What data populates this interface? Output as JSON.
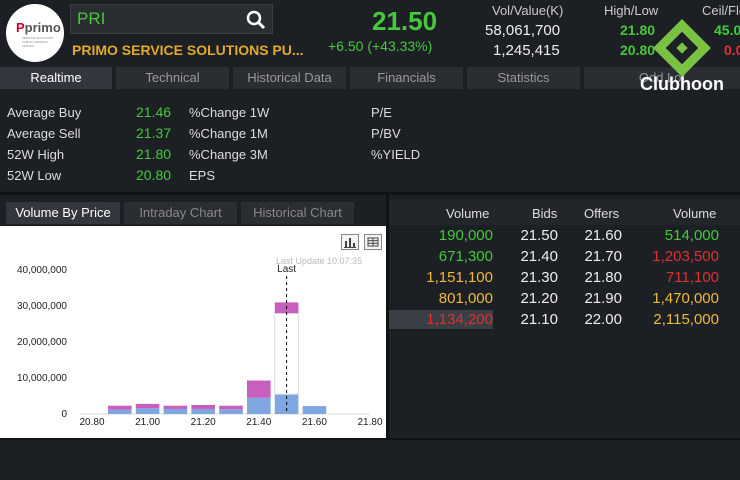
{
  "header": {
    "logo_text": "primo",
    "logo_sub": "SERVICE SOLUTIONS PUBLIC COMPANY LIMITED",
    "search_value": "PRI",
    "company_name": "PRIMO SERVICE SOLUTIONS PU...",
    "price": "21.50",
    "change": "+6.50 (+43.33%)",
    "vol_label": "Vol/Value(K)",
    "volume": "58,061,700",
    "value": "1,245,415",
    "hl_label": "High/Low",
    "high": "21.80",
    "low": "20.80",
    "cf_label": "Ceil/Flo",
    "ceil": "45.0",
    "floor": "0.0"
  },
  "tabs": [
    "Realtime",
    "Technical",
    "Historical Data",
    "Financials",
    "Statistics",
    "Odd Lot"
  ],
  "stats": {
    "left": [
      {
        "label": "Average Buy",
        "value": "21.46"
      },
      {
        "label": "Average Sell",
        "value": "21.37"
      },
      {
        "label": "52W High",
        "value": "21.80"
      },
      {
        "label": "52W Low",
        "value": "20.80"
      }
    ],
    "mid": [
      "%Change 1W",
      "%Change 1M",
      "%Change 3M",
      "EPS"
    ],
    "right": [
      "P/E",
      "P/BV",
      "%YIELD"
    ]
  },
  "subtabs": [
    "Volume By Price",
    "Intraday Chart",
    "Historical Chart"
  ],
  "chart": {
    "last_update": "Last Update 10:07:35",
    "last_label": "Last"
  },
  "chart_data": {
    "type": "bar",
    "categories": [
      "20.80",
      "20.90",
      "21.00",
      "21.10",
      "21.20",
      "21.30",
      "21.40",
      "21.50",
      "21.60",
      "21.70",
      "21.80"
    ],
    "x_ticks": [
      "20.80",
      "21.00",
      "21.20",
      "21.40",
      "21.60",
      "21.80"
    ],
    "y_ticks": [
      "40,000,000",
      "30,000,000",
      "20,000,000",
      "10,000,000",
      "0"
    ],
    "ylim": [
      0,
      40000000
    ],
    "series": [
      {
        "color": "#7ea6e0",
        "values": [
          0,
          1200000,
          1600000,
          1400000,
          1400000,
          1300000,
          4500000,
          5500000,
          2200000,
          0,
          0
        ]
      },
      {
        "color": "#c85fbd",
        "values": [
          0,
          1100000,
          1200000,
          900000,
          1100000,
          1000000,
          4800000,
          3000000,
          0,
          0,
          0
        ]
      },
      {
        "color": "#ffffff",
        "values": [
          0,
          0,
          0,
          0,
          0,
          0,
          0,
          0,
          0,
          0,
          0
        ]
      }
    ],
    "last_white": {
      "category": "21.50",
      "value": 22500000
    }
  },
  "book": {
    "headers": [
      "Volume",
      "Bids",
      "Offers",
      "Volume"
    ],
    "rows": [
      {
        "bv": "190,000",
        "bid": "21.50",
        "offer": "21.60",
        "ov": "514,000",
        "bvc": "g",
        "ovc": "g"
      },
      {
        "bv": "671,300",
        "bid": "21.40",
        "offer": "21.70",
        "ov": "1,203,500",
        "bvc": "g",
        "ovc": "r"
      },
      {
        "bv": "1,151,100",
        "bid": "21.30",
        "offer": "21.80",
        "ov": "711,100",
        "bvc": "y",
        "ovc": "r"
      },
      {
        "bv": "801,000",
        "bid": "21.20",
        "offer": "21.90",
        "ov": "1,470,000",
        "bvc": "y",
        "ovc": "y"
      },
      {
        "bv": "1,134,200",
        "bid": "21.10",
        "offer": "22.00",
        "ov": "2,115,000",
        "bvc": "r",
        "ovc": "y"
      }
    ]
  },
  "watermark": "Clubhoon"
}
